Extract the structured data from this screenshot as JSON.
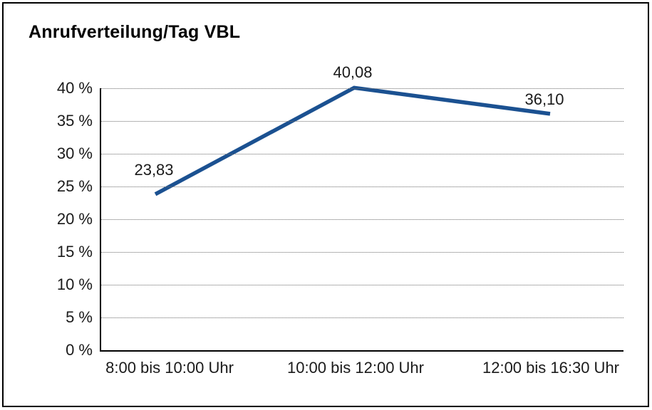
{
  "chart_data": {
    "type": "line",
    "title": "Anrufverteilung/Tag VBL",
    "categories": [
      "8:00 bis 10:00 Uhr",
      "10:00 bis 12:00 Uhr",
      "12:00 bis 16:30 Uhr"
    ],
    "series": [
      {
        "name": "Anrufverteilung/Tag VBL",
        "values": [
          23.83,
          40.08,
          36.1
        ],
        "point_labels": [
          "23,83",
          "40,08",
          "36,10"
        ]
      }
    ],
    "xlabel": "",
    "ylabel": "",
    "ylim": [
      0,
      40
    ],
    "yticks": [
      0,
      5,
      10,
      15,
      20,
      25,
      30,
      35,
      40
    ],
    "ytick_labels": [
      "0 %",
      "5 %",
      "10 %",
      "15 %",
      "20 %",
      "25 %",
      "30 %",
      "35 %",
      "40 %"
    ],
    "grid": "horizontal-dotted",
    "legend": "none",
    "colors": {
      "line": "#1b5191",
      "text": "#1a1a1a",
      "grid": "#6b6b6b",
      "axis": "#000000",
      "border": "#000000",
      "background": "#ffffff"
    }
  }
}
